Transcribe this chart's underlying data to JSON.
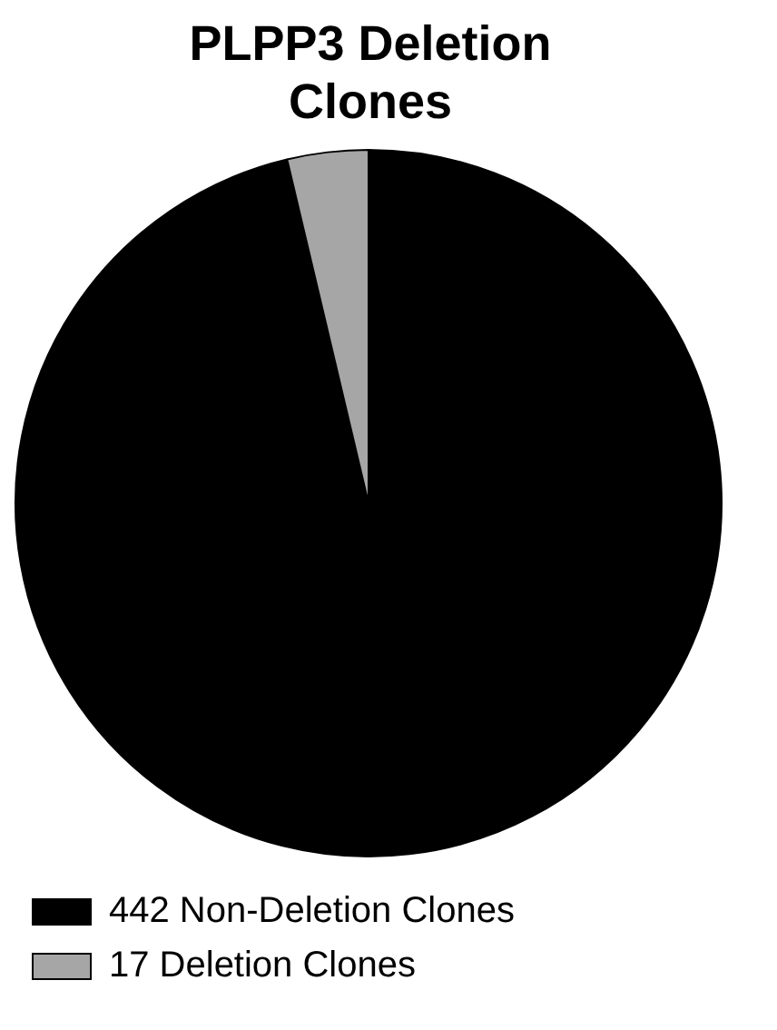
{
  "chart_data": {
    "type": "pie",
    "title": "PLPP3 Deletion Clones",
    "categories": [
      "442 Non-Deletion Clones",
      "17 Deletion Clones"
    ],
    "values": [
      442,
      17
    ],
    "colors": [
      "#000000",
      "#a6a6a6"
    ],
    "legend": "bottom"
  }
}
